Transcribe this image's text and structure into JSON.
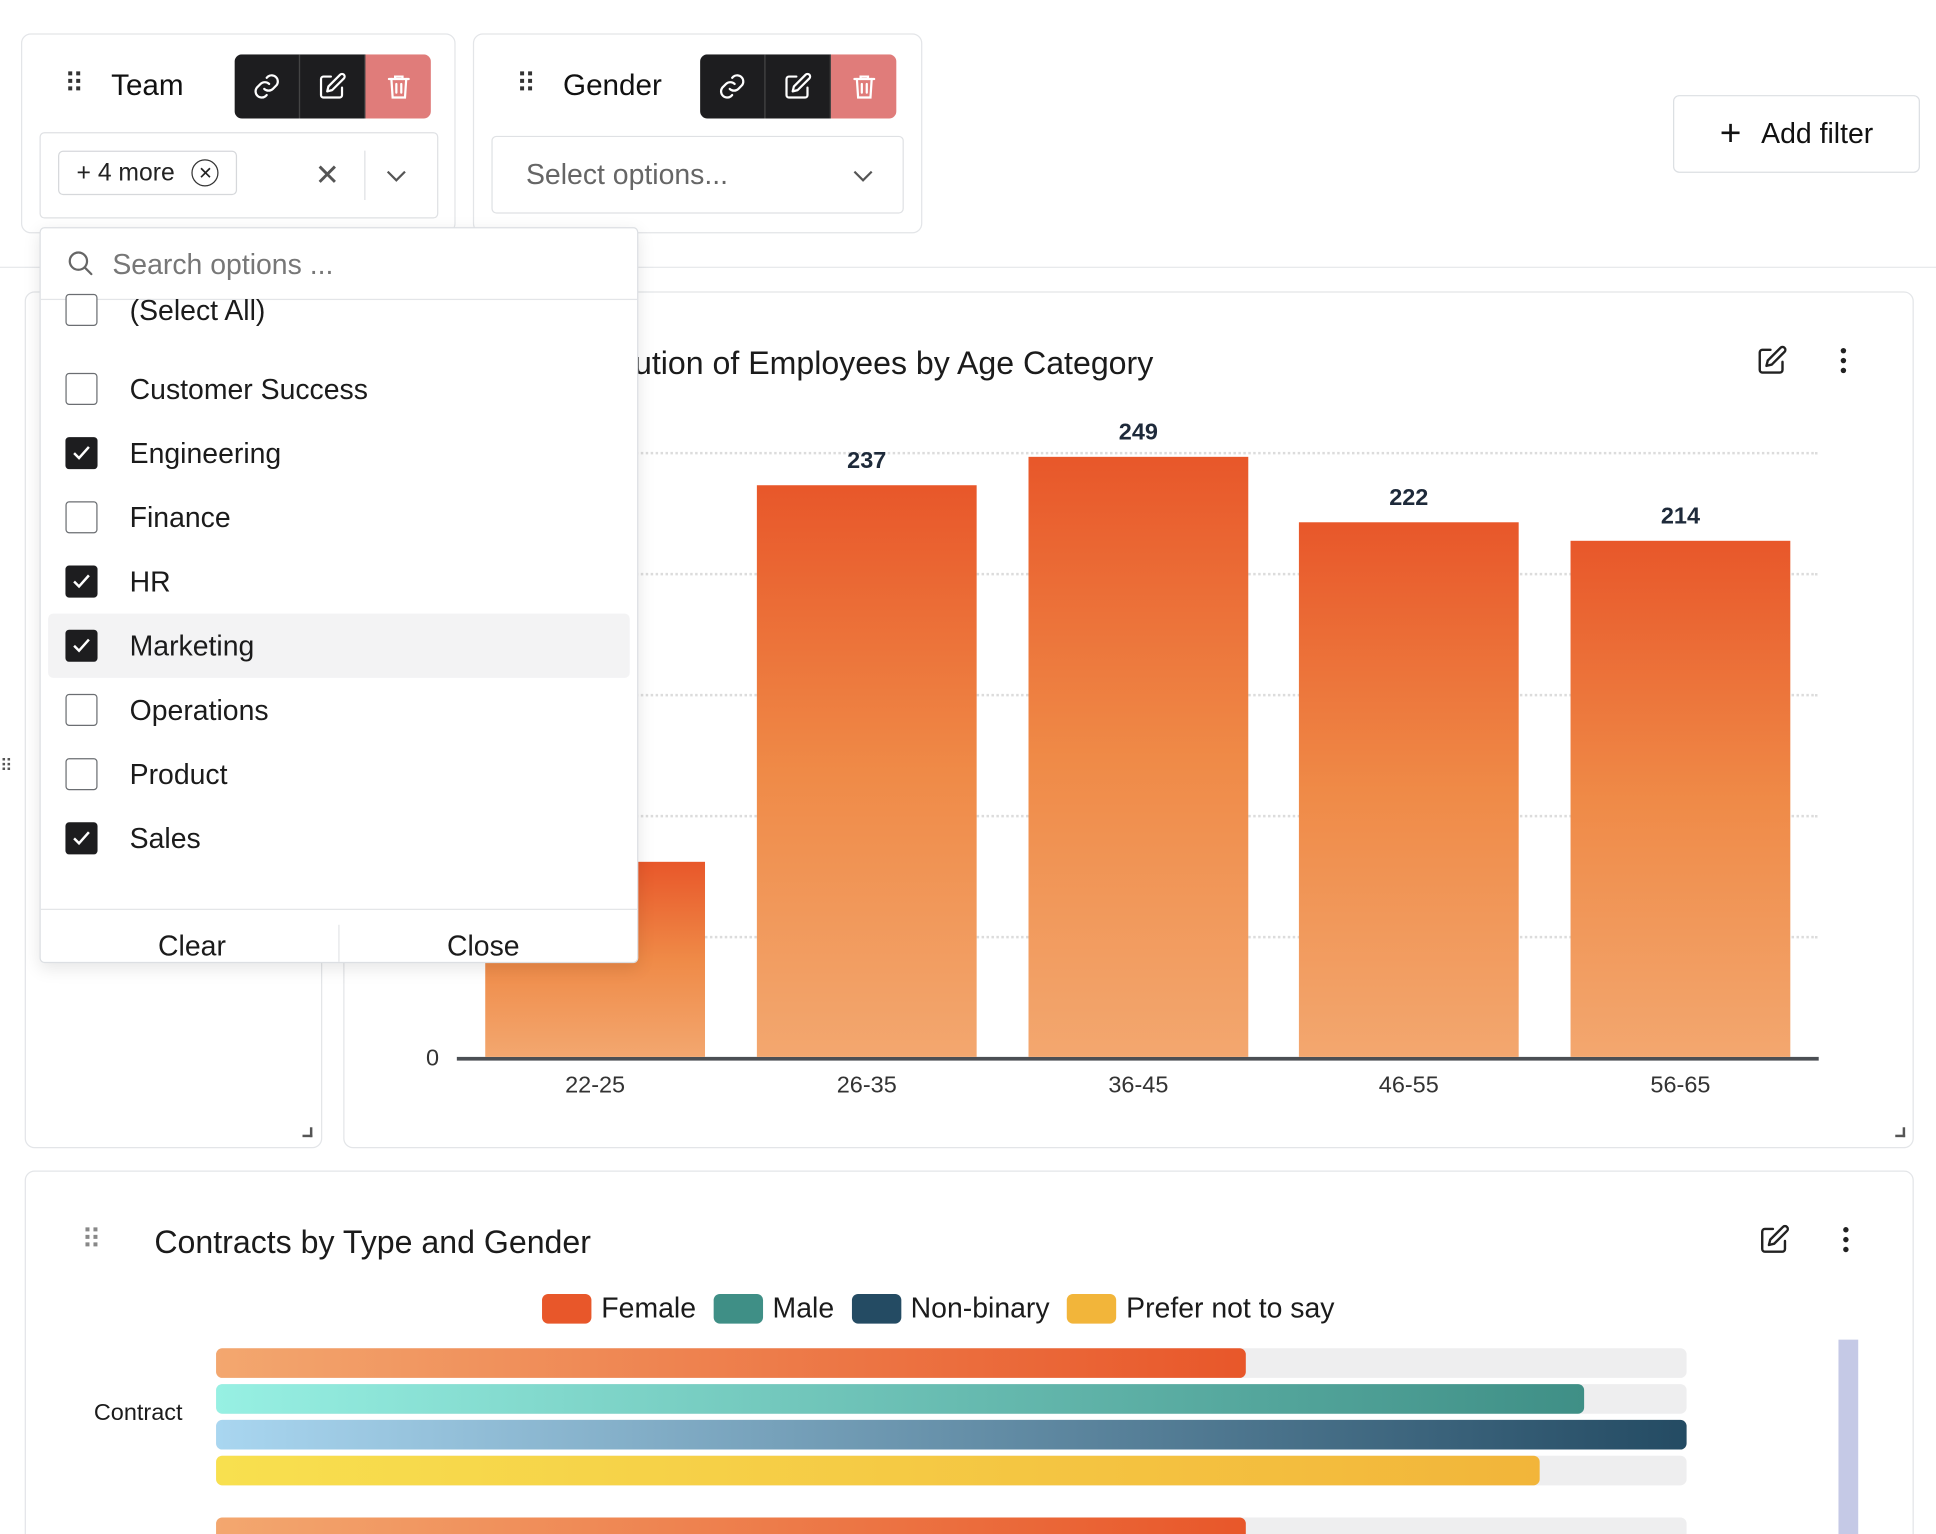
{
  "filters": {
    "team": {
      "title": "Team",
      "chip_label": "+ 4 more"
    },
    "gender": {
      "title": "Gender",
      "placeholder": "Select options..."
    },
    "add_filter_label": "Add filter"
  },
  "dropdown": {
    "search_placeholder": "Search options ...",
    "options": [
      {
        "label": "(Select All)",
        "checked": false
      },
      {
        "label": "Customer Success",
        "checked": false
      },
      {
        "label": "Engineering",
        "checked": true
      },
      {
        "label": "Finance",
        "checked": false
      },
      {
        "label": "HR",
        "checked": true
      },
      {
        "label": "Marketing",
        "checked": true,
        "highlighted": true
      },
      {
        "label": "Operations",
        "checked": false
      },
      {
        "label": "Product",
        "checked": false
      },
      {
        "label": "Sales",
        "checked": true
      }
    ],
    "clear_label": "Clear",
    "close_label": "Close"
  },
  "age_chart": {
    "visible_title": "bution of Employees by Age Category",
    "zero_label": "0"
  },
  "contracts_chart": {
    "title": "Contracts by Type and Gender",
    "y_label": "Contract"
  },
  "chart_data": [
    {
      "type": "bar",
      "title": "bution of Employees by Age Category",
      "categories": [
        "22-25",
        "26-35",
        "36-45",
        "46-55",
        "56-65"
      ],
      "values": [
        81,
        237,
        249,
        222,
        214
      ],
      "value_labels": [
        "",
        "237",
        "249",
        "222",
        "214"
      ],
      "ylim": [
        0,
        250
      ],
      "grid": true,
      "color": "#e8572a"
    },
    {
      "type": "bar",
      "orientation": "horizontal",
      "title": "Contracts by Type and Gender",
      "categories": [
        "Contract"
      ],
      "legend": [
        "Female",
        "Male",
        "Non-binary",
        "Prefer not to say"
      ],
      "series": [
        {
          "name": "Female",
          "values": [
            0.7
          ],
          "color": "#e8572a"
        },
        {
          "name": "Male",
          "values": [
            0.93
          ],
          "color": "#3f8f86"
        },
        {
          "name": "Non-binary",
          "values": [
            1.0
          ],
          "color": "#244b63"
        },
        {
          "name": "Prefer not to say",
          "values": [
            0.9
          ],
          "color": "#f2b53a"
        }
      ],
      "legend_position": "top"
    }
  ]
}
